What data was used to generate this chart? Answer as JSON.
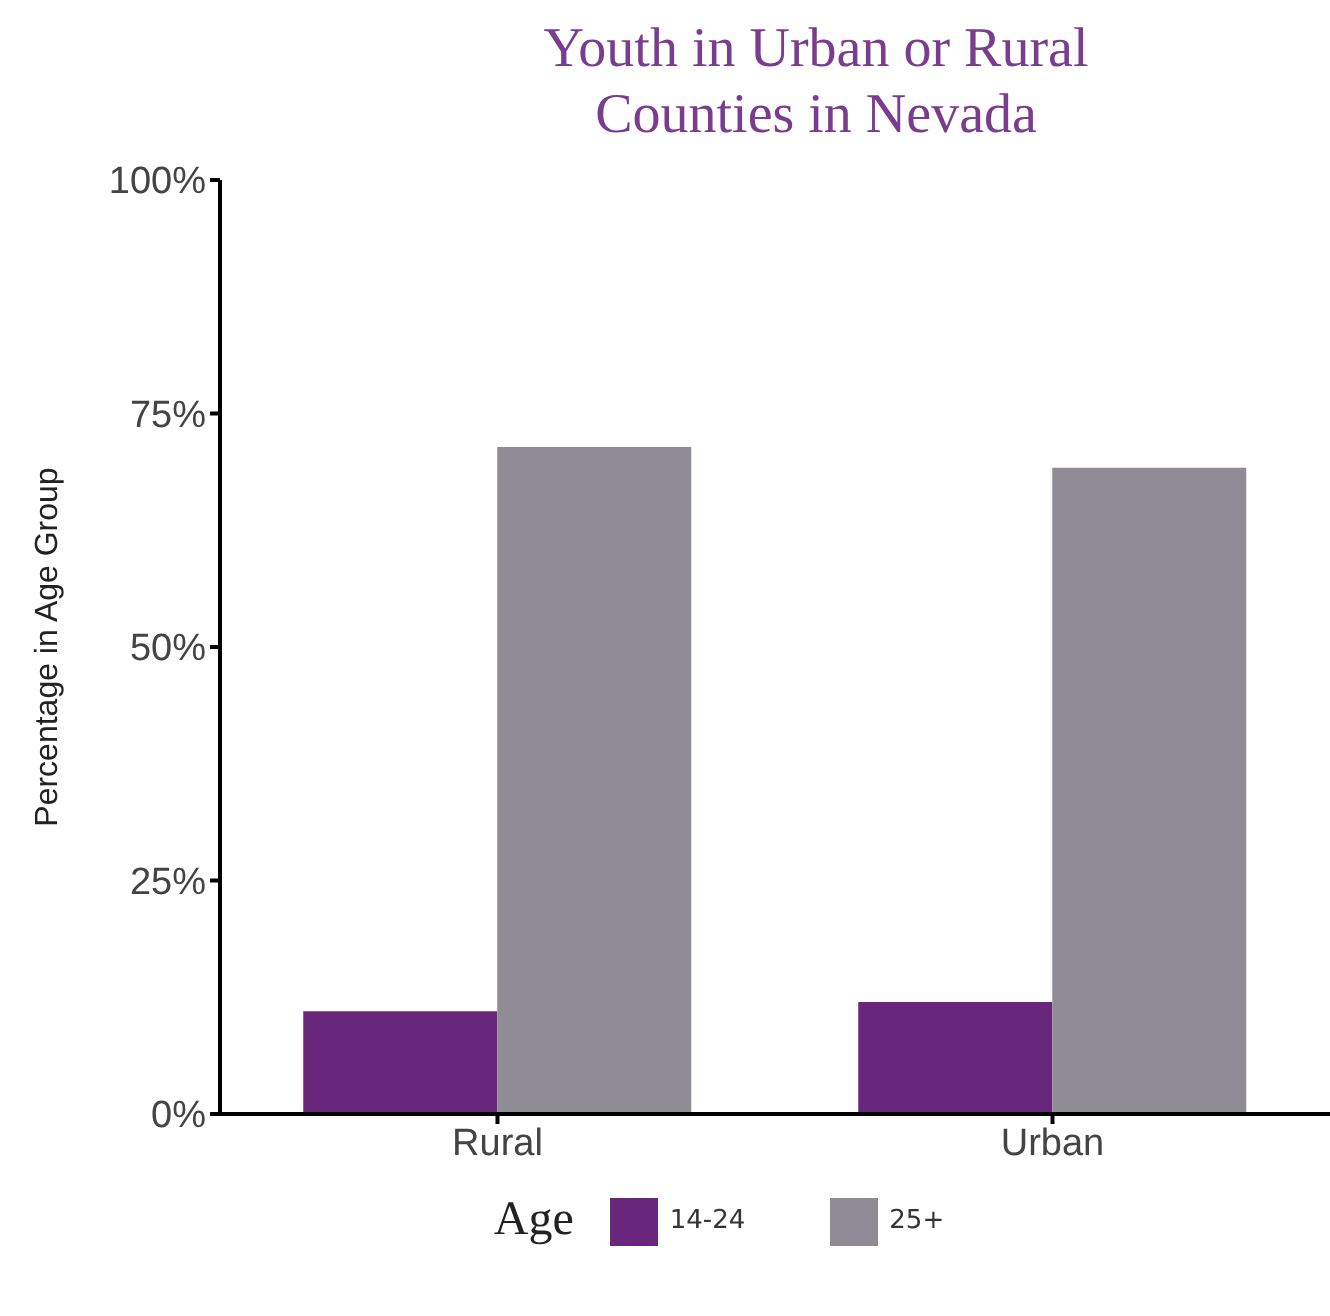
{
  "chart_data": {
    "type": "bar",
    "title": "Youth in Urban or Rural Counties in Nevada",
    "ylabel": "Percentage in Age Group",
    "legend_title": "Age",
    "categories": [
      "Rural",
      "Urban"
    ],
    "series": [
      {
        "name": "14-24",
        "color": "#68277a",
        "values": [
          11,
          12
        ]
      },
      {
        "name": "25+",
        "color": "#8f8c96",
        "values": [
          71.4,
          69.2
        ]
      }
    ],
    "ylim": [
      0,
      100
    ],
    "yticks": [
      {
        "value": 0,
        "label": "0%"
      },
      {
        "value": 25,
        "label": "25%"
      },
      {
        "value": 50,
        "label": "50%"
      },
      {
        "value": 75,
        "label": "75%"
      },
      {
        "value": 100,
        "label": "100%"
      }
    ],
    "grid": false,
    "legend": "bottom"
  }
}
